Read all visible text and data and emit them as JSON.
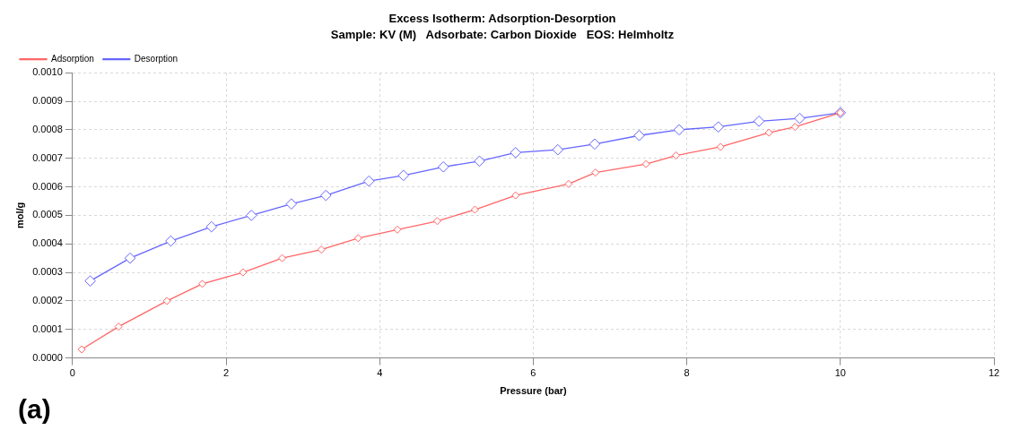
{
  "chart_data": {
    "type": "line",
    "title": "Excess Isotherm: Adsorption-Desorption",
    "subtitle": "Sample: KV (M)   Adsorbate: Carbon Dioxide   EOS: Helmholtz",
    "xlabel": "Pressure (bar)",
    "ylabel": "mol/g",
    "annotations": [
      "(a)"
    ],
    "legend": "top left",
    "grid": true,
    "marker": "diamond",
    "line_style": "solid",
    "xlim": [
      0,
      12
    ],
    "xticks": [
      0,
      2,
      4,
      6,
      8,
      10,
      12
    ],
    "ylim": [
      0,
      0.001
    ],
    "yticks": [
      {
        "value": 0,
        "label": "0.0000"
      },
      {
        "value": 0.0001,
        "label": "0.0001"
      },
      {
        "value": 0.0002,
        "label": "0.0002"
      },
      {
        "value": 0.0003,
        "label": "0.0003"
      },
      {
        "value": 0.0004,
        "label": "0.0004"
      },
      {
        "value": 0.0005,
        "label": "0.0005"
      },
      {
        "value": 0.0006,
        "label": "0.0006"
      },
      {
        "value": 0.0007,
        "label": "0.0007"
      },
      {
        "value": 0.0008,
        "label": "0.0008"
      },
      {
        "value": 0.0009,
        "label": "0.0009"
      },
      {
        "value": 0.001,
        "label": "0.0010"
      }
    ],
    "series": [
      {
        "name": "Adsorption",
        "color": "#ff6666",
        "x": [
          0.12,
          0.6,
          1.23,
          1.69,
          2.22,
          2.73,
          3.24,
          3.72,
          4.23,
          4.75,
          5.24,
          5.77,
          6.46,
          6.81,
          7.47,
          7.86,
          8.44,
          9.07,
          9.41,
          10.0
        ],
        "values": [
          3e-05,
          0.00011,
          0.0002,
          0.00026,
          0.0003,
          0.00035,
          0.00038,
          0.00042,
          0.00045,
          0.00048,
          0.00052,
          0.00057,
          0.00061,
          0.00065,
          0.00068,
          0.00071,
          0.00074,
          0.00079,
          0.00081,
          0.00086
        ]
      },
      {
        "name": "Desorption",
        "color": "#6666ff",
        "x": [
          0.23,
          0.75,
          1.28,
          1.81,
          2.33,
          2.85,
          3.3,
          3.86,
          4.31,
          4.83,
          5.3,
          5.77,
          6.32,
          6.8,
          7.38,
          7.9,
          8.41,
          8.94,
          9.47,
          10.0
        ],
        "values": [
          0.00027,
          0.00035,
          0.00041,
          0.00046,
          0.0005,
          0.00054,
          0.00057,
          0.00062,
          0.00064,
          0.00067,
          0.00069,
          0.00072,
          0.00073,
          0.00075,
          0.00078,
          0.0008,
          0.00081,
          0.00083,
          0.00084,
          0.00086
        ]
      }
    ]
  }
}
